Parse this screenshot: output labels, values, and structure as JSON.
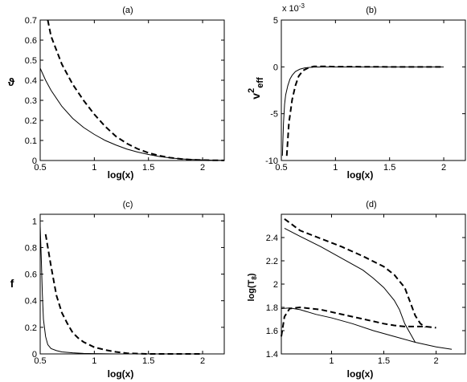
{
  "chart_data": [
    {
      "id": "a",
      "type": "line",
      "title": "(a)",
      "xlabel": "log(x)",
      "ylabel": "ϑ",
      "xlim": [
        0.5,
        2.2
      ],
      "ylim": [
        0,
        0.7
      ],
      "xticks": [
        "0.5",
        "1",
        "1.5",
        "2"
      ],
      "yticks": [
        "0",
        "0.1",
        "0.2",
        "0.3",
        "0.4",
        "0.5",
        "0.6",
        "0.7"
      ],
      "series": [
        {
          "style": "solid",
          "x": [
            0.5,
            0.55,
            0.6,
            0.7,
            0.8,
            0.9,
            1.0,
            1.1,
            1.2,
            1.3,
            1.4,
            1.5,
            1.6,
            1.7,
            1.8,
            1.9,
            2.0,
            2.1,
            2.2
          ],
          "y": [
            0.46,
            0.4,
            0.35,
            0.27,
            0.21,
            0.165,
            0.13,
            0.1,
            0.077,
            0.057,
            0.042,
            0.03,
            0.02,
            0.013,
            0.008,
            0.005,
            0.003,
            0.0015,
            0.001
          ]
        },
        {
          "style": "dashed",
          "x": [
            0.57,
            0.6,
            0.7,
            0.8,
            0.9,
            1.0,
            1.1,
            1.2,
            1.3,
            1.4,
            1.5,
            1.6,
            1.7,
            1.8,
            1.9,
            2.0,
            2.1,
            2.2
          ],
          "y": [
            0.7,
            0.62,
            0.48,
            0.38,
            0.3,
            0.23,
            0.17,
            0.12,
            0.085,
            0.058,
            0.038,
            0.024,
            0.014,
            0.008,
            0.004,
            0.002,
            0.001,
            0.0005
          ]
        }
      ]
    },
    {
      "id": "b",
      "type": "line",
      "title": "(b)",
      "exponent": "x 10",
      "exponent_power": "-3",
      "xlabel": "log(x)",
      "ylabel": "v",
      "ylabel_sup": "2",
      "ylabel_sub": "eff",
      "xlim": [
        0.5,
        2.2
      ],
      "ylim": [
        -10,
        5
      ],
      "xticks": [
        "0.5",
        "1",
        "1.5",
        "2"
      ],
      "yticks": [
        "-10",
        "-5",
        "0",
        "5"
      ],
      "series": [
        {
          "style": "solid",
          "x": [
            0.51,
            0.52,
            0.53,
            0.54,
            0.56,
            0.58,
            0.6,
            0.63,
            0.67,
            0.72,
            0.8,
            0.9,
            1.0,
            1.5,
            2.0
          ],
          "y": [
            -9.5,
            -6.0,
            -4.0,
            -3.0,
            -2.0,
            -1.3,
            -0.9,
            -0.5,
            -0.25,
            -0.1,
            -0.03,
            0.0,
            0.0,
            0.0,
            0.0
          ]
        },
        {
          "style": "dashed",
          "x": [
            0.55,
            0.57,
            0.6,
            0.63,
            0.66,
            0.7,
            0.75,
            0.8,
            0.9,
            1.0,
            1.5,
            2.0
          ],
          "y": [
            -9.5,
            -6.0,
            -3.5,
            -2.0,
            -1.0,
            -0.4,
            -0.1,
            0.05,
            0.05,
            0.02,
            0.0,
            0.0
          ]
        }
      ]
    },
    {
      "id": "c",
      "type": "line",
      "title": "(c)",
      "xlabel": "log(x)",
      "ylabel": "f",
      "xlim": [
        0.5,
        2.2
      ],
      "ylim": [
        0,
        1.05
      ],
      "xticks": [
        "0.5",
        "1",
        "1.5",
        "2"
      ],
      "yticks": [
        "0",
        "0.2",
        "0.4",
        "0.6",
        "0.8",
        "1"
      ],
      "series": [
        {
          "style": "solid",
          "x": [
            0.5,
            0.51,
            0.52,
            0.53,
            0.55,
            0.57,
            0.6,
            0.65,
            0.7,
            0.8,
            0.9,
            1.0,
            1.2,
            1.5
          ],
          "y": [
            0.96,
            0.72,
            0.45,
            0.26,
            0.13,
            0.07,
            0.04,
            0.025,
            0.015,
            0.008,
            0.004,
            0.002,
            0.0,
            0.0
          ]
        },
        {
          "style": "dashed",
          "x": [
            0.55,
            0.6,
            0.65,
            0.7,
            0.75,
            0.8,
            0.85,
            0.9,
            1.0,
            1.1,
            1.2,
            1.3,
            1.4,
            1.5,
            1.6,
            2.0
          ],
          "y": [
            0.9,
            0.66,
            0.44,
            0.31,
            0.23,
            0.16,
            0.12,
            0.09,
            0.05,
            0.03,
            0.015,
            0.005,
            0.002,
            0.0,
            0.0,
            0.0
          ]
        }
      ]
    },
    {
      "id": "d",
      "type": "line",
      "title": "(d)",
      "xlabel": "log(x)",
      "ylabel": "log(T",
      "ylabel_sub": "8",
      "ylabel_end": ")",
      "xlim": [
        0.52,
        2.28
      ],
      "ylim": [
        1.4,
        2.6
      ],
      "xticks": [
        "1",
        "1.5",
        "2"
      ],
      "yticks": [
        "1.4",
        "1.6",
        "1.8",
        "2",
        "2.2",
        "2.4"
      ],
      "series": [
        {
          "style": "solid",
          "x": [
            0.55,
            0.7,
            0.9,
            1.1,
            1.3,
            1.4,
            1.5,
            1.6,
            1.65,
            1.7,
            1.8
          ],
          "y": [
            2.48,
            2.41,
            2.32,
            2.22,
            2.12,
            2.05,
            1.97,
            1.86,
            1.78,
            1.66,
            1.5
          ]
        },
        {
          "style": "dashed",
          "x": [
            0.55,
            0.7,
            0.9,
            1.1,
            1.3,
            1.5,
            1.6,
            1.7,
            1.75,
            1.8,
            1.85,
            1.9
          ],
          "y": [
            2.56,
            2.46,
            2.39,
            2.32,
            2.24,
            2.15,
            2.08,
            1.97,
            1.85,
            1.73,
            1.66,
            1.63
          ]
        },
        {
          "style": "solid",
          "x": [
            0.52,
            0.6,
            0.7,
            0.85,
            1.0,
            1.2,
            1.4,
            1.6,
            1.8,
            2.0,
            2.15
          ],
          "y": [
            1.79,
            1.795,
            1.78,
            1.74,
            1.71,
            1.66,
            1.6,
            1.55,
            1.5,
            1.46,
            1.44
          ]
        },
        {
          "style": "dashed",
          "x": [
            0.52,
            0.55,
            0.6,
            0.7,
            0.8,
            0.9,
            1.0,
            1.2,
            1.4,
            1.5,
            1.6,
            1.7,
            1.8,
            1.9,
            2.0
          ],
          "y": [
            1.55,
            1.72,
            1.79,
            1.8,
            1.79,
            1.78,
            1.76,
            1.72,
            1.68,
            1.66,
            1.645,
            1.635,
            1.635,
            1.635,
            1.625
          ]
        }
      ]
    }
  ]
}
